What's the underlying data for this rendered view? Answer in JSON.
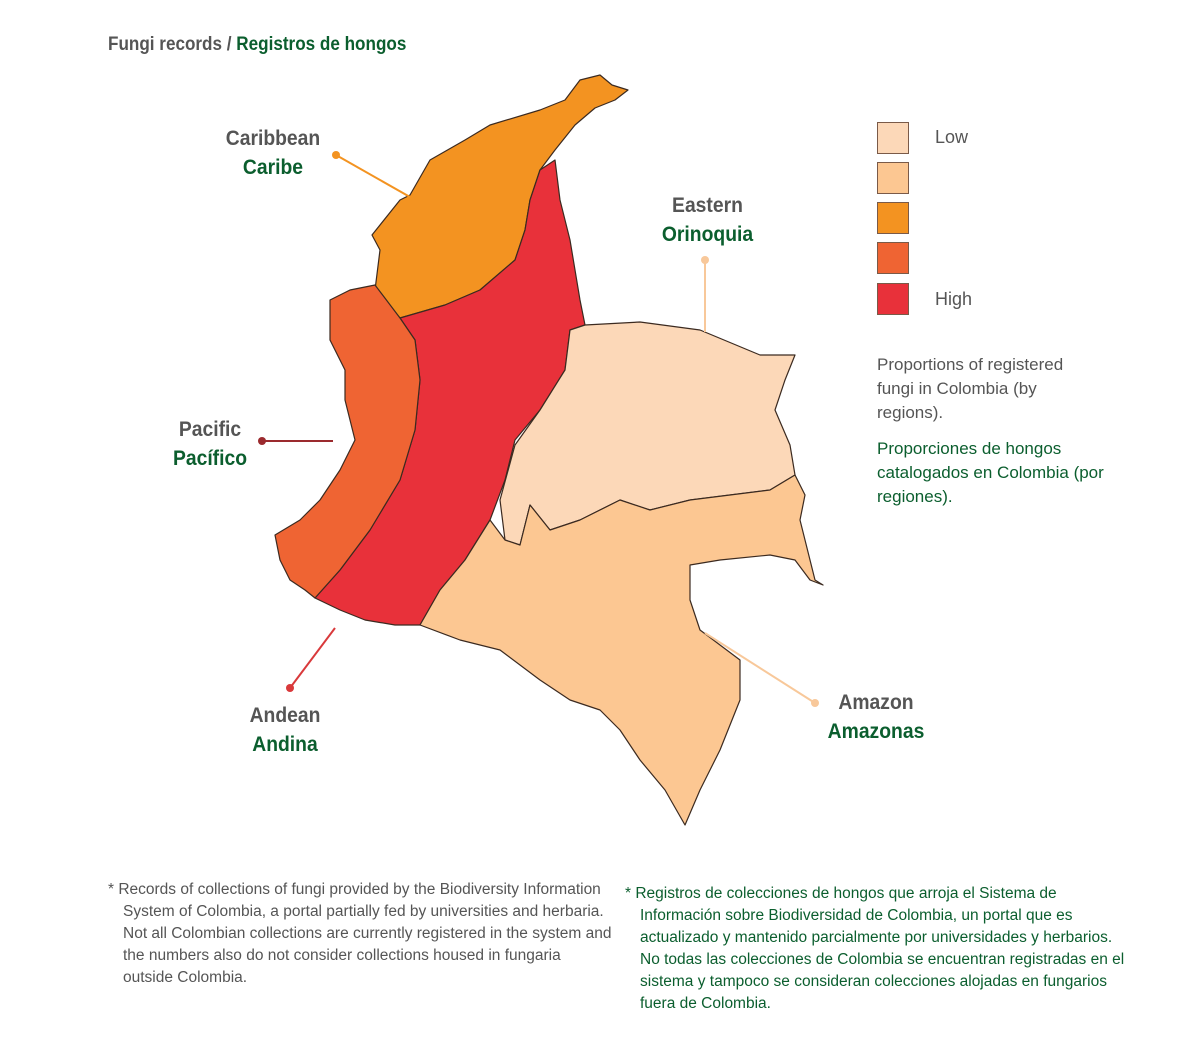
{
  "title": {
    "en": "Fungi records",
    "separator": " / ",
    "es": "Registros de hongos"
  },
  "colors": {
    "low": "#fcd8b8",
    "low_mid": "#fcc792",
    "mid": "#f39321",
    "mid_high": "#ef6433",
    "high": "#e8313a",
    "text_gray": "#555555",
    "text_green": "#0b5e2e"
  },
  "regions": [
    {
      "id": "caribbean",
      "en": "Caribbean",
      "es": "Caribe",
      "level": 3
    },
    {
      "id": "eastern",
      "en": "Eastern",
      "es": "Orinoquia",
      "level": 1
    },
    {
      "id": "pacific",
      "en": "Pacific",
      "es": "Pacífico",
      "level": 4
    },
    {
      "id": "andean",
      "en": "Andean",
      "es": "Andina",
      "level": 5
    },
    {
      "id": "amazon",
      "en": "Amazon",
      "es": "Amazonas",
      "level": 2
    }
  ],
  "legend": {
    "low_label": "Low",
    "high_label": "High",
    "levels": 5
  },
  "description": {
    "en": "Proportions of registered fungi in Colombia (by regions).",
    "es": "Proporciones de hongos catalogados en Colombia (por regiones)."
  },
  "footnotes": {
    "en": "* Records of collections of fungi provided by the Biodiversity Information System of Colombia, a portal partially fed by universities and herbaria. Not all Colombian collections are currently registered in the system and the numbers also do not consider collections housed in fungaria outside Colombia.",
    "es": "* Registros de colecciones de hongos que arroja el Sistema de Información sobre Biodiversidad de Colombia, un portal que es actualizado y mantenido parcialmente por universidades y herbarios. No todas las colecciones de Colombia se encuentran registradas en el sistema y tampoco se consideran colecciones alojadas en fungarios fuera de Colombia."
  }
}
